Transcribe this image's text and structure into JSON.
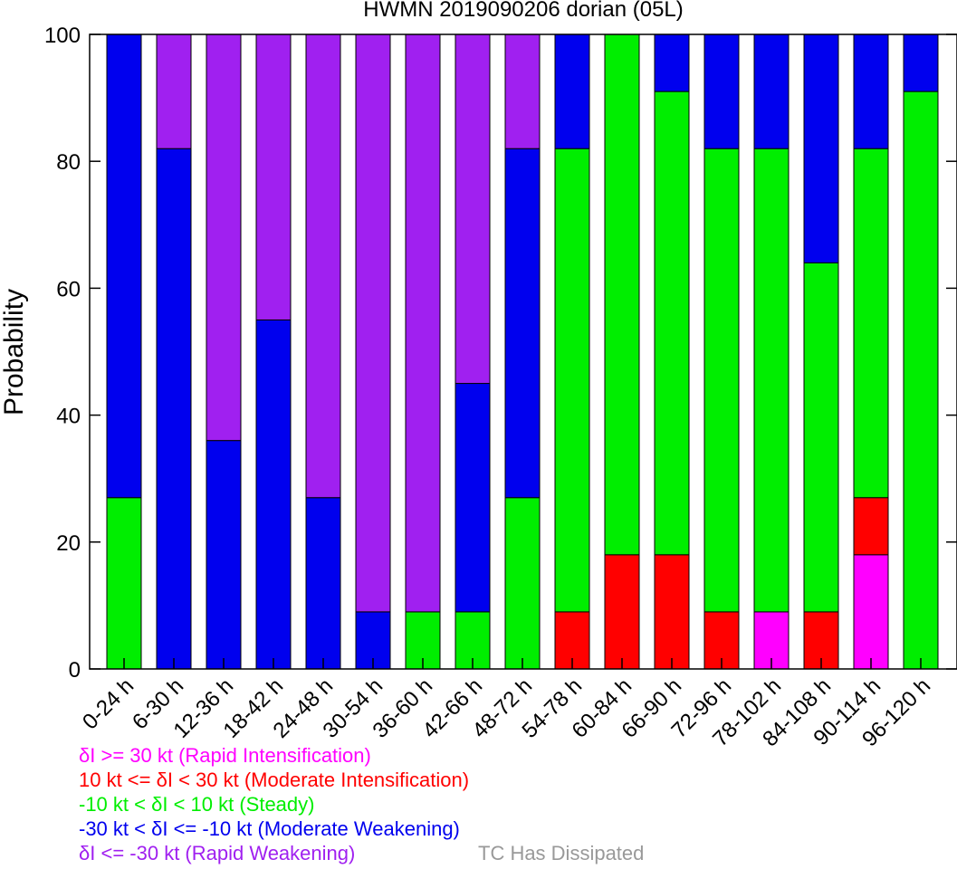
{
  "chart_data": {
    "type": "bar",
    "stacked": true,
    "title": "HWMN 2019090206 dorian (05L)",
    "ylabel": "Probability",
    "xlabel": "",
    "ylim": [
      0,
      100
    ],
    "yticks": [
      0,
      20,
      40,
      60,
      80,
      100
    ],
    "grid": false,
    "categories": [
      "0-24 h",
      "6-30 h",
      "12-36 h",
      "18-42 h",
      "24-48 h",
      "30-54 h",
      "36-60 h",
      "42-66 h",
      "48-72 h",
      "54-78 h",
      "60-84 h",
      "66-90 h",
      "72-96 h",
      "78-102 h",
      "84-108 h",
      "90-114 h",
      "96-120 h"
    ],
    "series": [
      {
        "key": "rapid_intensification",
        "color": "#ff00ff",
        "values": [
          0,
          0,
          0,
          0,
          0,
          0,
          0,
          0,
          0,
          0,
          0,
          0,
          0,
          9,
          0,
          18,
          0
        ]
      },
      {
        "key": "moderate_intensification",
        "color": "#ff0000",
        "values": [
          0,
          0,
          0,
          0,
          0,
          0,
          0,
          0,
          0,
          9,
          18,
          18,
          9,
          0,
          9,
          9,
          0
        ]
      },
      {
        "key": "steady",
        "color": "#00ee00",
        "values": [
          27,
          0,
          0,
          0,
          0,
          0,
          9,
          9,
          27,
          73,
          82,
          73,
          73,
          73,
          55,
          55,
          91
        ]
      },
      {
        "key": "moderate_weakening",
        "color": "#0000ee",
        "values": [
          73,
          82,
          36,
          55,
          27,
          9,
          0,
          36,
          55,
          18,
          0,
          9,
          18,
          18,
          36,
          18,
          9
        ]
      },
      {
        "key": "rapid_weakening",
        "color": "#a020f0",
        "values": [
          0,
          18,
          64,
          45,
          73,
          91,
          91,
          55,
          18,
          0,
          0,
          0,
          0,
          0,
          0,
          0,
          0
        ]
      }
    ],
    "legend": {
      "placement": "bottom-left",
      "entries": [
        {
          "text": "δI >= 30 kt (Rapid Intensification)",
          "color": "#ff00ff"
        },
        {
          "text": "10 kt <= δI < 30 kt (Moderate Intensification)",
          "color": "#ff0000"
        },
        {
          "text": "-10 kt < δI < 10 kt (Steady)",
          "color": "#00ee00"
        },
        {
          "text": "-30 kt < δI <= -10 kt (Moderate Weakening)",
          "color": "#0000ee"
        },
        {
          "text": "δI <= -30 kt (Rapid Weakening)",
          "color": "#a020f0"
        }
      ],
      "extra": {
        "text": "TC Has Dissipated",
        "color": "#999999"
      }
    }
  }
}
